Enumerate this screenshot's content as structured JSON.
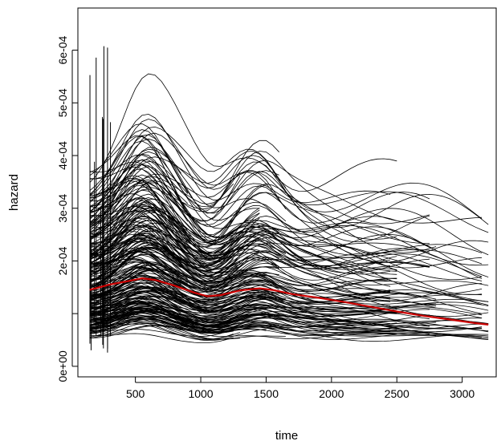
{
  "chart_data": {
    "type": "line",
    "title": "",
    "xlabel": "time",
    "ylabel": "hazard",
    "xlim": [
      60,
      3260
    ],
    "ylim": [
      -2e-05,
      0.00068
    ],
    "xticks": [
      500,
      1000,
      1500,
      2000,
      2500,
      3000
    ],
    "xtick_labels": [
      "500",
      "1000",
      "1500",
      "2000",
      "2500",
      "3000"
    ],
    "yticks": [
      0,
      0.0001,
      0.0002,
      0.0003,
      0.0004,
      0.0005,
      0.0006
    ],
    "ytick_labels": [
      "0e+00",
      "",
      "2e-04",
      "3e-04",
      "4e-04",
      "5e-04",
      "6e-04"
    ],
    "grid": false,
    "individual_curves": {
      "color": "#000000",
      "description_of_spread": "many thin black per-subject hazard curves",
      "start_time": 150,
      "end_times": [
        900,
        1300,
        1500,
        1650,
        2500,
        2800,
        3200
      ]
    },
    "series": [
      {
        "color": "#cc0000",
        "x": [
          150,
          300,
          450,
          550,
          650,
          800,
          950,
          1050,
          1150,
          1300,
          1450,
          1550,
          1700,
          1900,
          2100,
          2300,
          2500,
          2700,
          2900,
          3100,
          3200
        ],
        "values": [
          0.000145,
          0.000155,
          0.000162,
          0.000167,
          0.000164,
          0.000153,
          0.00014,
          0.000133,
          0.000135,
          0.000144,
          0.000148,
          0.000145,
          0.000137,
          0.00013,
          0.000122,
          0.000113,
          0.000104,
          9.6e-05,
          8.9e-05,
          8.2e-05,
          7.9e-05
        ]
      }
    ]
  }
}
